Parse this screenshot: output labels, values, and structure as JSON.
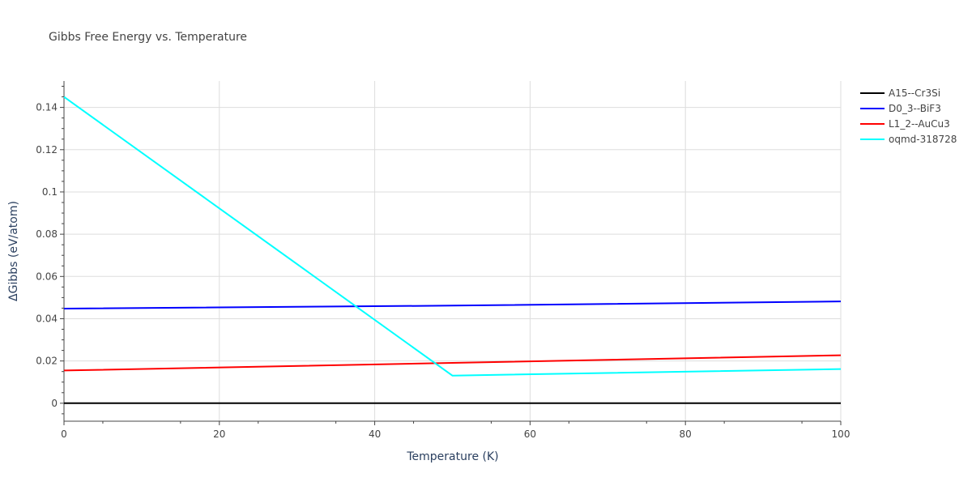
{
  "chart_data": {
    "type": "line",
    "title": "Gibbs Free Energy vs. Temperature",
    "xlabel": "Temperature (K)",
    "ylabel": "ΔGibbs (eV/atom)",
    "xlim": [
      0,
      100
    ],
    "ylim": [
      -0.0085,
      0.1525
    ],
    "x_ticks": [
      0,
      20,
      40,
      60,
      80,
      100
    ],
    "x_tick_labels": [
      "0",
      "20",
      "40",
      "60",
      "80",
      "100"
    ],
    "y_ticks": [
      0,
      0.02,
      0.04,
      0.06,
      0.08,
      0.1,
      0.12,
      0.14
    ],
    "y_tick_labels": [
      "0",
      "0.02",
      "0.04",
      "0.06",
      "0.08",
      "0.1",
      "0.12",
      "0.14"
    ],
    "grid": true,
    "legend_position": "top-right",
    "series": [
      {
        "name": "A15--Cr3Si",
        "color": "#000000",
        "x": [
          0,
          100
        ],
        "y": [
          0,
          0
        ]
      },
      {
        "name": "D0_3--BiF3",
        "color": "#0000ff",
        "x": [
          0,
          50,
          100
        ],
        "y": [
          0.0448,
          0.0462,
          0.0482
        ]
      },
      {
        "name": "L1_2--AuCu3",
        "color": "#ff0000",
        "x": [
          0,
          50,
          100
        ],
        "y": [
          0.0155,
          0.0191,
          0.0227
        ]
      },
      {
        "name": "oqmd-318728",
        "color": "#00ffff",
        "x": [
          0,
          50,
          100
        ],
        "y": [
          0.145,
          0.0131,
          0.0162
        ]
      }
    ]
  }
}
